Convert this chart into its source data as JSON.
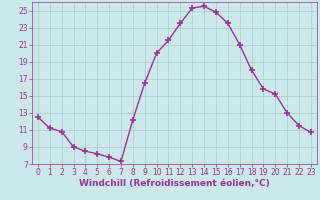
{
  "x": [
    0,
    1,
    2,
    3,
    4,
    5,
    6,
    7,
    8,
    9,
    10,
    11,
    12,
    13,
    14,
    15,
    16,
    17,
    18,
    19,
    20,
    21,
    22,
    23
  ],
  "y": [
    12.5,
    11.2,
    10.8,
    9.0,
    8.5,
    8.2,
    7.8,
    7.3,
    12.2,
    16.5,
    20.0,
    21.5,
    23.5,
    25.3,
    25.5,
    24.8,
    23.5,
    21.0,
    18.0,
    15.8,
    15.2,
    13.0,
    11.5,
    10.7
  ],
  "line_color": "#993399",
  "marker": "+",
  "markersize": 4,
  "linewidth": 1.0,
  "xlabel": "Windchill (Refroidissement éolien,°C)",
  "xlabel_fontsize": 6.5,
  "background_color": "#cce8e8",
  "grid_color": "#aacccc",
  "tick_color": "#993399",
  "label_color": "#993399",
  "xlim": [
    -0.5,
    23.5
  ],
  "ylim": [
    7,
    26
  ],
  "yticks": [
    7,
    9,
    11,
    13,
    15,
    17,
    19,
    21,
    23,
    25
  ],
  "xticks": [
    0,
    1,
    2,
    3,
    4,
    5,
    6,
    7,
    8,
    9,
    10,
    11,
    12,
    13,
    14,
    15,
    16,
    17,
    18,
    19,
    20,
    21,
    22,
    23
  ],
  "tick_labelsize": 5.5
}
